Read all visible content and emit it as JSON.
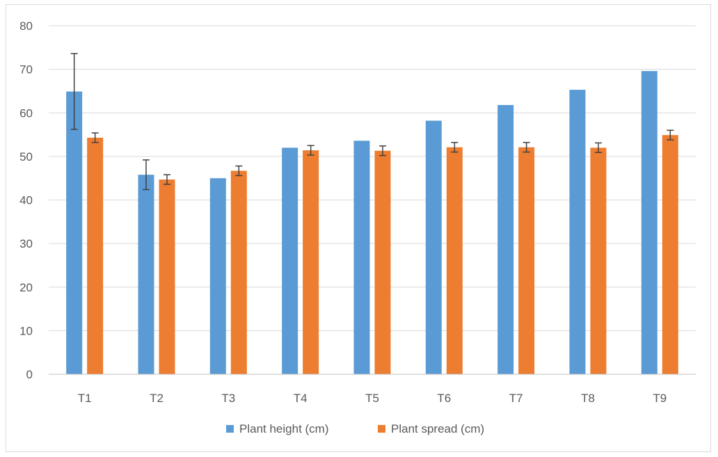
{
  "chart_data": {
    "type": "bar",
    "categories": [
      "T1",
      "T2",
      "T3",
      "T4",
      "T5",
      "T6",
      "T7",
      "T8",
      "T9"
    ],
    "series": [
      {
        "name": "Plant height (cm)",
        "color": "#5b9bd5",
        "values": [
          64.9,
          45.8,
          45.0,
          52.0,
          53.6,
          58.2,
          61.8,
          65.3,
          69.6
        ],
        "error": [
          8.7,
          3.4,
          null,
          null,
          null,
          null,
          null,
          null,
          null
        ]
      },
      {
        "name": "Plant spread (cm)",
        "color": "#ed7d31",
        "values": [
          54.3,
          44.7,
          46.7,
          51.4,
          51.3,
          52.1,
          52.1,
          52.0,
          54.9
        ],
        "error": [
          1.1,
          1.1,
          1.1,
          1.1,
          1.1,
          1.1,
          1.1,
          1.1,
          1.1
        ]
      }
    ],
    "yticks": [
      0,
      10,
      20,
      30,
      40,
      50,
      60,
      70,
      80
    ],
    "ylim": [
      0,
      80
    ],
    "grid": true,
    "legend": "bottom",
    "title": "",
    "xlabel": "",
    "ylabel": ""
  }
}
